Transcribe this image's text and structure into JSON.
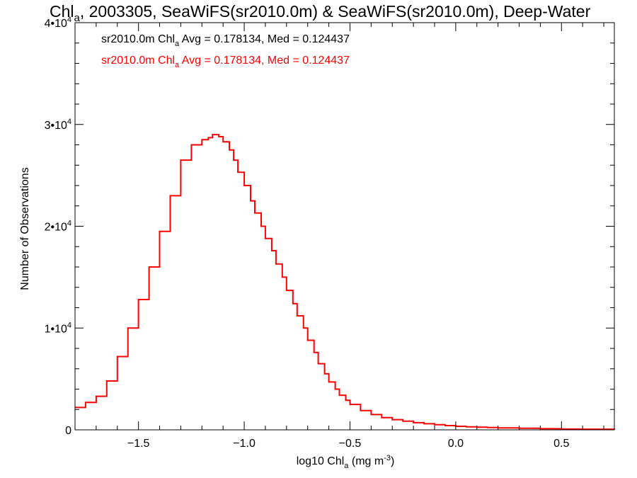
{
  "chart_data": {
    "type": "line",
    "title": {
      "prefix": "Chl",
      "prefix_sub": "a",
      "rest": ", 2003305, SeaWiFS(sr2010.0m) & SeaWiFS(sr2010.0m), Deep-Water"
    },
    "xlabel": {
      "prefix": "log10 Chl",
      "sub": "a",
      "mid": " (mg m",
      "sup": "-3",
      "suffix": ")"
    },
    "ylabel": "Number of Observations",
    "xlim": [
      -1.8,
      0.75
    ],
    "ylim": [
      0,
      40000
    ],
    "x_ticks": [
      {
        "value": -1.5,
        "label": "−1.5"
      },
      {
        "value": -1.0,
        "label": "−1.0"
      },
      {
        "value": -0.5,
        "label": "−0.5"
      },
      {
        "value": 0.0,
        "label": "0.0"
      },
      {
        "value": 0.5,
        "label": "0.5"
      }
    ],
    "y_ticks": [
      {
        "value": 0,
        "label": "0"
      },
      {
        "value": 10000,
        "label": "1•10",
        "sup": "4"
      },
      {
        "value": 20000,
        "label": "2•10",
        "sup": "4"
      },
      {
        "value": 30000,
        "label": "3•10",
        "sup": "4"
      },
      {
        "value": 40000,
        "label": "4•10",
        "sup": "4"
      }
    ],
    "annotations": [
      {
        "color": "#000000",
        "prefix": "sr2010.0m Chl",
        "sub": "a",
        "rest": " Avg = 0.178134, Med = 0.124437"
      },
      {
        "color": "#ff0000",
        "prefix": "sr2010.0m Chl",
        "sub": "a",
        "rest": " Avg = 0.178134, Med = 0.124437"
      }
    ],
    "series": [
      {
        "color": "#ff0000",
        "step": true,
        "x": [
          -1.8,
          -1.75,
          -1.7,
          -1.65,
          -1.6,
          -1.55,
          -1.5,
          -1.45,
          -1.4,
          -1.35,
          -1.3,
          -1.25,
          -1.2,
          -1.17,
          -1.15,
          -1.12,
          -1.1,
          -1.07,
          -1.05,
          -1.03,
          -1.0,
          -0.97,
          -0.95,
          -0.92,
          -0.9,
          -0.87,
          -0.85,
          -0.82,
          -0.8,
          -0.77,
          -0.75,
          -0.72,
          -0.7,
          -0.67,
          -0.65,
          -0.62,
          -0.6,
          -0.57,
          -0.55,
          -0.52,
          -0.5,
          -0.45,
          -0.4,
          -0.35,
          -0.3,
          -0.25,
          -0.2,
          -0.15,
          -0.1,
          -0.05,
          0.0,
          0.05,
          0.1,
          0.15,
          0.2,
          0.3,
          0.4,
          0.5,
          0.6,
          0.75
        ],
        "y": [
          2200,
          2700,
          3300,
          4800,
          7200,
          10000,
          12800,
          16000,
          19500,
          23000,
          26500,
          28000,
          28500,
          28700,
          29000,
          28800,
          28300,
          27500,
          26500,
          25300,
          24000,
          22500,
          21300,
          20000,
          18800,
          17600,
          16300,
          15000,
          13700,
          12400,
          11200,
          10000,
          8800,
          7600,
          6500,
          5500,
          4700,
          4000,
          3400,
          2900,
          2500,
          1900,
          1500,
          1200,
          1000,
          850,
          700,
          600,
          500,
          420,
          350,
          300,
          260,
          220,
          190,
          150,
          110,
          80,
          60,
          50
        ]
      }
    ]
  }
}
